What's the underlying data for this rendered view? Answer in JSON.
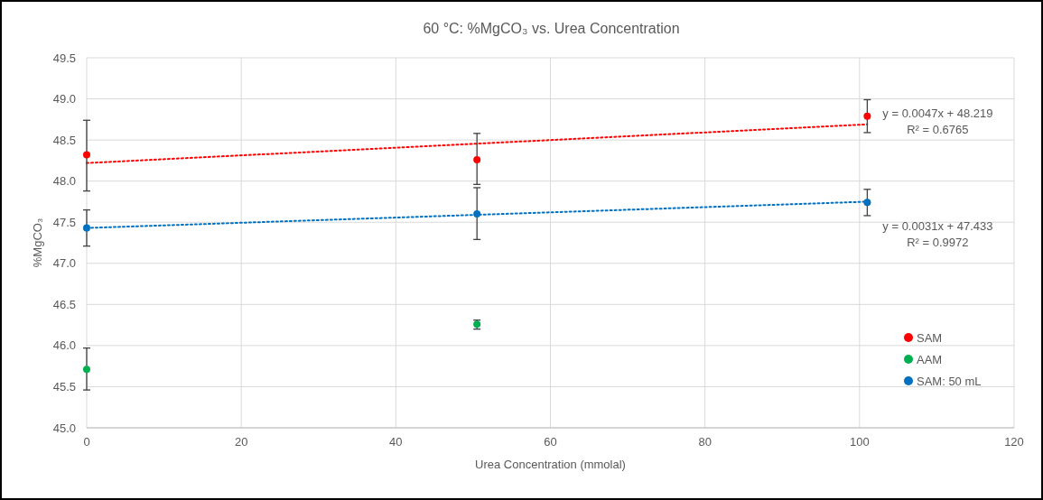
{
  "chart_data": {
    "type": "scatter",
    "title": "60 °C: %MgCO₃ vs. Urea Concentration",
    "xlabel": "Urea Concentration (mmolal)",
    "ylabel": "%MgCO₃",
    "xlim": [
      0,
      120
    ],
    "xticks": [
      0,
      20,
      40,
      60,
      80,
      100,
      120
    ],
    "ylim": [
      45.0,
      49.5
    ],
    "yticks": [
      {
        "value": 45,
        "label": "45.0"
      },
      {
        "value": 45.5,
        "label": "45.5"
      },
      {
        "value": 46,
        "label": "46.0"
      },
      {
        "value": 46.5,
        "label": "46.5"
      },
      {
        "value": 47,
        "label": "47.0"
      },
      {
        "value": 47.5,
        "label": "47.5"
      },
      {
        "value": 48,
        "label": "48.0"
      },
      {
        "value": 48.5,
        "label": "48.5"
      },
      {
        "value": 49,
        "label": "49.0"
      },
      {
        "value": 49.5,
        "label": "49.5"
      }
    ],
    "grid": true,
    "legend": "bottom right",
    "marker": "circle",
    "series": [
      {
        "name": "SAM",
        "color": "#ff0000",
        "x": [
          0,
          50.5,
          101
        ],
        "values": [
          48.32,
          48.26,
          48.79
        ],
        "errors": [
          [
            47.88,
            48.74
          ],
          [
            47.96,
            48.58
          ],
          [
            48.59,
            48.99
          ]
        ]
      },
      {
        "name": "AAM",
        "color": "#00b050",
        "x": [
          0,
          50.5
        ],
        "values": [
          45.71,
          46.26
        ],
        "errors": [
          [
            45.46,
            45.97
          ],
          [
            46.2,
            46.31
          ]
        ]
      },
      {
        "name": "SAM: 50 mL",
        "color": "#0070c0",
        "x": [
          0,
          50.5,
          101
        ],
        "values": [
          47.43,
          47.6,
          47.74
        ],
        "errors": [
          [
            47.21,
            47.65
          ],
          [
            47.29,
            47.92
          ],
          [
            47.58,
            47.9
          ]
        ]
      },
      {
        "type": "line",
        "color": "#ff0000",
        "line_style": "dotted",
        "marker": "none",
        "x": [
          0,
          101
        ],
        "values": [
          48.22,
          48.69
        ]
      },
      {
        "type": "line",
        "color": "#0070c0",
        "line_style": "dotted",
        "marker": "none",
        "x": [
          0,
          101
        ],
        "values": [
          47.43,
          47.75
        ]
      }
    ],
    "annotations": [
      "y = 0.0047x + 48.219",
      "R² = 0.6765",
      "y = 0.0031x + 47.433",
      "R² = 0.9972"
    ]
  }
}
